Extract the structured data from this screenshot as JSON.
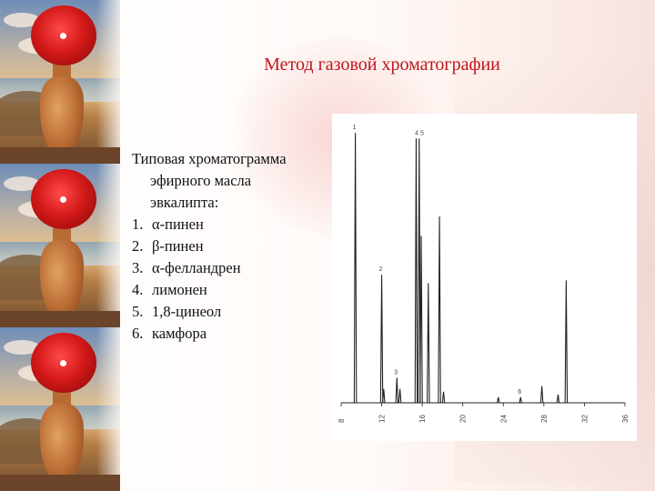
{
  "slide": {
    "title": "Метод газовой хроматографии",
    "heading": [
      "Типовая хроматограмма",
      "эфирного масла",
      "эвкалипта:"
    ],
    "items": [
      {
        "num": "1.",
        "label": "α-пинен"
      },
      {
        "num": "2.",
        "label": "β-пинен"
      },
      {
        "num": "3.",
        "label": "α-фелландрен"
      },
      {
        "num": "4.",
        "label": "лимонен"
      },
      {
        "num": "5.",
        "label": "1,8-цинеол"
      },
      {
        "num": "6.",
        "label": "камфора"
      }
    ]
  },
  "colors": {
    "title": "#c0151b",
    "text": "#111111",
    "trace": "#222222"
  },
  "chart_data": {
    "type": "line",
    "title": "",
    "xlabel": "",
    "ylabel": "",
    "xlim": [
      8,
      36
    ],
    "ylim": [
      0,
      100
    ],
    "x_ticks": [
      "8",
      "12",
      "16",
      "20",
      "24",
      "28",
      "32",
      "36"
    ],
    "grid": false,
    "baseline": 0,
    "peaks": [
      {
        "x": 9.4,
        "height": 97,
        "label": "1"
      },
      {
        "x": 12.0,
        "height": 46,
        "label": "2"
      },
      {
        "x": 12.2,
        "height": 5,
        "label": ""
      },
      {
        "x": 13.5,
        "height": 9,
        "label": "3"
      },
      {
        "x": 13.8,
        "height": 5,
        "label": ""
      },
      {
        "x": 15.4,
        "height": 95,
        "label": "4"
      },
      {
        "x": 15.7,
        "height": 95,
        "label": "5"
      },
      {
        "x": 15.9,
        "height": 60,
        "label": ""
      },
      {
        "x": 16.6,
        "height": 43,
        "label": ""
      },
      {
        "x": 17.7,
        "height": 67,
        "label": ""
      },
      {
        "x": 18.1,
        "height": 4,
        "label": ""
      },
      {
        "x": 23.5,
        "height": 2,
        "label": ""
      },
      {
        "x": 25.7,
        "height": 2,
        "label": "6"
      },
      {
        "x": 27.8,
        "height": 6,
        "label": ""
      },
      {
        "x": 29.4,
        "height": 3,
        "label": ""
      },
      {
        "x": 30.2,
        "height": 44,
        "label": ""
      }
    ],
    "annotations": [
      "1",
      "2",
      "3",
      "4 5",
      "6"
    ]
  }
}
